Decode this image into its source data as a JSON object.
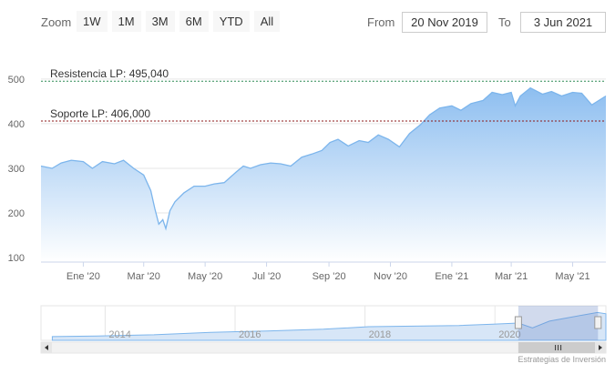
{
  "toolbar": {
    "zoom_label": "Zoom",
    "zoom_buttons": [
      "1W",
      "1M",
      "3M",
      "6M",
      "YTD",
      "All"
    ],
    "from_label": "From",
    "from_value": "20 Nov 2019",
    "to_label": "To",
    "to_value": "3 Jun 2021"
  },
  "credits": "Estrategias de Inversión",
  "chart_data": {
    "type": "area",
    "x_range": [
      "2019-11-20",
      "2021-06-03"
    ],
    "ylim": [
      90,
      520
    ],
    "yticks": [
      100,
      200,
      300,
      400,
      500
    ],
    "xticks": [
      {
        "date": "2020-01-01",
        "label": "Ene '20"
      },
      {
        "date": "2020-03-01",
        "label": "Mar '20"
      },
      {
        "date": "2020-05-01",
        "label": "May '20"
      },
      {
        "date": "2020-07-01",
        "label": "Jul '20"
      },
      {
        "date": "2020-09-01",
        "label": "Sep '20"
      },
      {
        "date": "2020-11-01",
        "label": "Nov '20"
      },
      {
        "date": "2021-01-01",
        "label": "Ene '21"
      },
      {
        "date": "2021-03-01",
        "label": "Mar '21"
      },
      {
        "date": "2021-05-01",
        "label": "May '21"
      }
    ],
    "grid": true,
    "colors": {
      "line": "#7cb5ec",
      "fill_top": "#8dbef0",
      "fill_bottom": "#ffffff",
      "resistance": "#2e8b57",
      "support": "#8b1a1a"
    },
    "plot_lines": [
      {
        "label": "Resistencia LP: 495,040",
        "value": 495.04,
        "color": "#2e8b57"
      },
      {
        "label": "Soporte LP: 406,000",
        "value": 406.0,
        "color": "#8b1a1a"
      }
    ],
    "series": [
      {
        "x": [
          "2019-11-20",
          "2019-12-01",
          "2019-12-10",
          "2019-12-20",
          "2020-01-01",
          "2020-01-10",
          "2020-01-20",
          "2020-02-01",
          "2020-02-10",
          "2020-02-20",
          "2020-03-01",
          "2020-03-08",
          "2020-03-12",
          "2020-03-16",
          "2020-03-20",
          "2020-03-23",
          "2020-03-27",
          "2020-04-01",
          "2020-04-10",
          "2020-04-20",
          "2020-05-01",
          "2020-05-10",
          "2020-05-20",
          "2020-06-01",
          "2020-06-08",
          "2020-06-15",
          "2020-06-25",
          "2020-07-05",
          "2020-07-15",
          "2020-07-25",
          "2020-08-05",
          "2020-08-15",
          "2020-08-25",
          "2020-09-02",
          "2020-09-10",
          "2020-09-20",
          "2020-10-01",
          "2020-10-10",
          "2020-10-20",
          "2020-10-30",
          "2020-11-10",
          "2020-11-20",
          "2020-12-01",
          "2020-12-10",
          "2020-12-20",
          "2021-01-01",
          "2021-01-10",
          "2021-01-20",
          "2021-02-01",
          "2021-02-10",
          "2021-02-20",
          "2021-03-01",
          "2021-03-05",
          "2021-03-10",
          "2021-03-20",
          "2021-04-01",
          "2021-04-10",
          "2021-04-20",
          "2021-05-01",
          "2021-05-10",
          "2021-05-20",
          "2021-06-03"
        ],
        "values": [
          305,
          300,
          312,
          318,
          315,
          300,
          315,
          310,
          318,
          300,
          285,
          250,
          210,
          175,
          185,
          165,
          205,
          225,
          245,
          260,
          260,
          265,
          268,
          292,
          305,
          300,
          308,
          312,
          310,
          305,
          325,
          332,
          340,
          358,
          365,
          350,
          362,
          358,
          375,
          365,
          348,
          378,
          398,
          420,
          435,
          440,
          430,
          445,
          452,
          470,
          465,
          470,
          440,
          462,
          480,
          466,
          472,
          462,
          470,
          468,
          442,
          462
        ]
      }
    ]
  },
  "navigator": {
    "year_labels": [
      "2014",
      "2016",
      "2018",
      "2020"
    ],
    "range_fraction": [
      0.845,
      0.986
    ]
  }
}
